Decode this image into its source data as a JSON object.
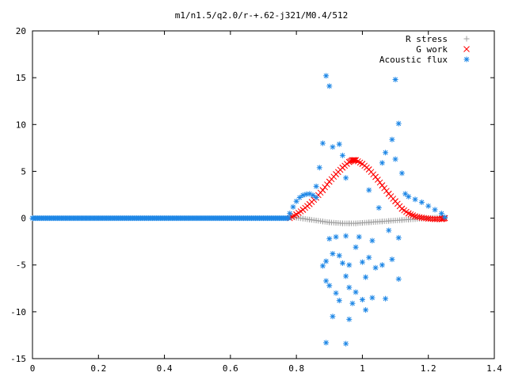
{
  "chart_data": {
    "type": "scatter",
    "title": "m1/n1.5/q2.0/r-+.62-j321/M0.4/512",
    "xlabel": "",
    "ylabel": "",
    "xlim": [
      0,
      1.4
    ],
    "ylim": [
      -15,
      20
    ],
    "xticks": [
      "0",
      "0.2",
      "0.4",
      "0.6",
      "0.8",
      "1",
      "1.2",
      "1.4"
    ],
    "yticks": [
      "-15",
      "-10",
      "-5",
      "0",
      "5",
      "10",
      "15",
      "20"
    ],
    "grid": false,
    "legend_position": "top-right",
    "series": [
      {
        "name": "R stress",
        "marker": "plus",
        "color": "#a0a0a0",
        "points": [
          [
            0.78,
            0.2
          ],
          [
            0.8,
            0.05
          ],
          [
            0.82,
            -0.05
          ],
          [
            0.84,
            -0.15
          ],
          [
            0.86,
            -0.25
          ],
          [
            0.88,
            -0.35
          ],
          [
            0.9,
            -0.45
          ],
          [
            0.92,
            -0.5
          ],
          [
            0.94,
            -0.55
          ],
          [
            0.96,
            -0.55
          ],
          [
            0.98,
            -0.55
          ],
          [
            1.0,
            -0.5
          ],
          [
            1.02,
            -0.45
          ],
          [
            1.04,
            -0.4
          ],
          [
            1.06,
            -0.35
          ],
          [
            1.08,
            -0.3
          ],
          [
            1.1,
            -0.25
          ],
          [
            1.12,
            -0.2
          ],
          [
            1.14,
            -0.15
          ],
          [
            1.16,
            -0.1
          ],
          [
            1.18,
            -0.05
          ],
          [
            1.2,
            0.0
          ],
          [
            1.22,
            0.05
          ],
          [
            1.24,
            0.1
          ],
          [
            1.25,
            0.0
          ]
        ]
      },
      {
        "name": "G work",
        "marker": "cross",
        "color": "#ff0000",
        "points": [
          [
            0.78,
            0.0
          ],
          [
            0.8,
            0.4
          ],
          [
            0.82,
            0.9
          ],
          [
            0.84,
            1.5
          ],
          [
            0.86,
            2.2
          ],
          [
            0.88,
            3.0
          ],
          [
            0.9,
            3.9
          ],
          [
            0.92,
            4.7
          ],
          [
            0.94,
            5.4
          ],
          [
            0.96,
            6.0
          ],
          [
            0.97,
            6.2
          ],
          [
            0.98,
            6.2
          ],
          [
            1.0,
            5.8
          ],
          [
            1.02,
            5.2
          ],
          [
            1.04,
            4.4
          ],
          [
            1.06,
            3.5
          ],
          [
            1.08,
            2.6
          ],
          [
            1.1,
            1.8
          ],
          [
            1.12,
            1.0
          ],
          [
            1.14,
            0.5
          ],
          [
            1.16,
            0.2
          ],
          [
            1.18,
            0.05
          ],
          [
            1.2,
            -0.05
          ],
          [
            1.22,
            -0.1
          ],
          [
            1.24,
            -0.1
          ],
          [
            1.25,
            0.0
          ]
        ]
      },
      {
        "name": "Acoustic flux",
        "marker": "star",
        "color": "#1e87e6",
        "points": [
          [
            0.0,
            0.0
          ],
          [
            0.78,
            0.5
          ],
          [
            0.79,
            1.2
          ],
          [
            0.8,
            1.8
          ],
          [
            0.81,
            2.2
          ],
          [
            0.82,
            2.45
          ],
          [
            0.83,
            2.55
          ],
          [
            0.84,
            2.6
          ],
          [
            0.85,
            2.45
          ],
          [
            0.86,
            2.2
          ],
          [
            1.13,
            2.6
          ],
          [
            1.14,
            2.3
          ],
          [
            1.16,
            2.0
          ],
          [
            1.18,
            1.7
          ],
          [
            1.2,
            1.3
          ],
          [
            1.22,
            0.9
          ],
          [
            1.24,
            0.5
          ],
          [
            1.25,
            0.1
          ],
          [
            0.89,
            15.2
          ],
          [
            0.9,
            14.1
          ],
          [
            1.1,
            14.8
          ],
          [
            1.11,
            10.1
          ],
          [
            1.09,
            8.4
          ],
          [
            0.88,
            8.0
          ],
          [
            0.91,
            7.6
          ],
          [
            0.93,
            7.9
          ],
          [
            0.87,
            5.4
          ],
          [
            0.94,
            6.7
          ],
          [
            1.07,
            7.0
          ],
          [
            1.12,
            4.8
          ],
          [
            1.06,
            5.9
          ],
          [
            1.1,
            6.3
          ],
          [
            0.86,
            3.4
          ],
          [
            0.95,
            4.3
          ],
          [
            1.02,
            3.0
          ],
          [
            1.05,
            1.1
          ],
          [
            0.9,
            -2.2
          ],
          [
            0.92,
            -2.0
          ],
          [
            0.95,
            -1.9
          ],
          [
            0.99,
            -2.0
          ],
          [
            1.03,
            -2.4
          ],
          [
            1.08,
            -1.3
          ],
          [
            1.11,
            -2.1
          ],
          [
            0.88,
            -5.1
          ],
          [
            0.89,
            -4.6
          ],
          [
            0.91,
            -3.8
          ],
          [
            0.93,
            -4.0
          ],
          [
            0.94,
            -4.8
          ],
          [
            0.96,
            -5.0
          ],
          [
            0.98,
            -3.1
          ],
          [
            1.0,
            -4.7
          ],
          [
            1.02,
            -4.2
          ],
          [
            1.04,
            -5.3
          ],
          [
            1.06,
            -5.0
          ],
          [
            1.09,
            -4.4
          ],
          [
            1.11,
            -6.5
          ],
          [
            0.89,
            -6.7
          ],
          [
            0.9,
            -7.2
          ],
          [
            0.92,
            -8.0
          ],
          [
            0.93,
            -8.8
          ],
          [
            0.95,
            -6.2
          ],
          [
            0.96,
            -7.4
          ],
          [
            0.97,
            -9.1
          ],
          [
            0.98,
            -7.9
          ],
          [
            1.0,
            -8.7
          ],
          [
            1.01,
            -6.3
          ],
          [
            1.03,
            -8.5
          ],
          [
            1.07,
            -8.6
          ],
          [
            0.91,
            -10.5
          ],
          [
            0.96,
            -10.8
          ],
          [
            1.01,
            -9.8
          ],
          [
            0.89,
            -13.3
          ],
          [
            0.95,
            -13.4
          ]
        ]
      }
    ]
  }
}
